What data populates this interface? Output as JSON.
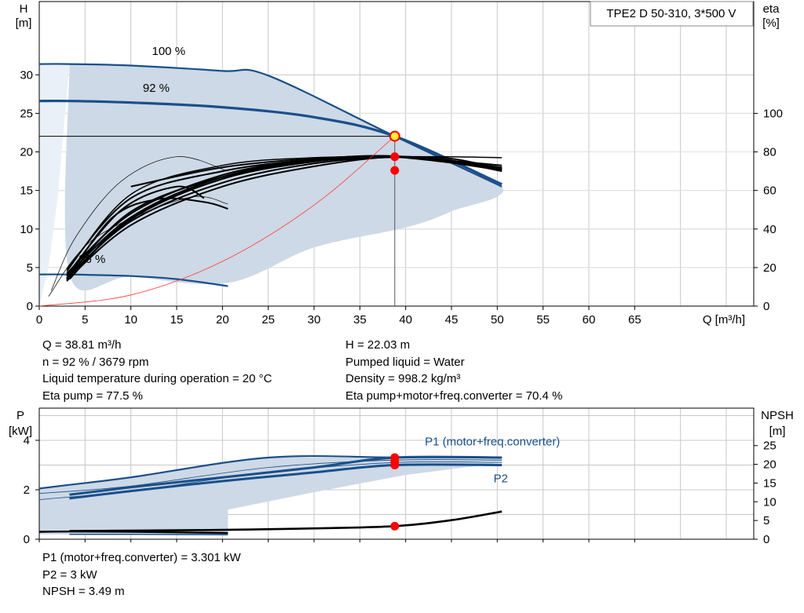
{
  "colors": {
    "curve": "#1a4f8a",
    "fill": "#cdd9e6",
    "fill_light": "#e9f0f8",
    "eta": "#000000",
    "system": "#ff3b3b",
    "dot": "#ff0000",
    "dot_duty": "#ffee33",
    "grid": "#c8c8c8"
  },
  "chart_data": [
    {
      "id": "head",
      "type": "line",
      "title": "TPE2 D 50-310, 3*500 V",
      "xlabel": "Q [m³/h]",
      "ylabel_top": "H",
      "ylabel_unit": "[m]",
      "y2label_top": "eta",
      "y2label_unit": "[%]",
      "xlim": [
        0,
        78
      ],
      "ylim": [
        0,
        39.5
      ],
      "xticks": [
        0,
        5,
        10,
        15,
        20,
        25,
        30,
        35,
        40,
        45,
        50,
        55,
        60,
        65
      ],
      "yticks": [
        0,
        5,
        10,
        15,
        20,
        25,
        30
      ],
      "y2lim": [
        0,
        158
      ],
      "y2ticks": [
        0,
        20,
        40,
        60,
        80,
        100
      ],
      "curve_labels": [
        {
          "text": "100 %",
          "x": 12.3,
          "y": 32.6
        },
        {
          "text": "92 %",
          "x": 11.3,
          "y": 27.8
        },
        {
          "text": "36 %",
          "x": 4.3,
          "y": 5.6
        }
      ],
      "envelope": {
        "upper": [
          [
            3.3,
            31.4
          ],
          [
            10,
            31.2
          ],
          [
            20,
            30.5
          ],
          [
            25,
            29.9
          ],
          [
            38.81,
            22.03
          ],
          [
            50.5,
            15.5
          ]
        ],
        "lower": [
          [
            50.5,
            15.5
          ],
          [
            45,
            12.3
          ],
          [
            40,
            10.2
          ],
          [
            30,
            7.6
          ],
          [
            20.6,
            3.0
          ]
        ],
        "left": [
          [
            20.6,
            3.0
          ],
          [
            10,
            3.8
          ],
          [
            3.3,
            4.1
          ],
          [
            3.3,
            31.4
          ]
        ]
      },
      "envelope_light": [
        [
          0,
          0
        ],
        [
          1,
          5
        ],
        [
          2,
          14
        ],
        [
          3.3,
          31.4
        ],
        [
          0,
          31.4
        ]
      ],
      "series": [
        {
          "name": "100 %",
          "kind": "head",
          "points": [
            [
              0,
              31.4
            ],
            [
              3.3,
              31.4
            ],
            [
              10,
              31.2
            ],
            [
              20,
              30.5
            ],
            [
              25,
              29.9
            ],
            [
              38.81,
              22.03
            ],
            [
              50.5,
              15.5
            ]
          ]
        },
        {
          "name": "92 %",
          "kind": "head",
          "points": [
            [
              0,
              26.6
            ],
            [
              3.3,
              26.6
            ],
            [
              10,
              26.4
            ],
            [
              20,
              25.8
            ],
            [
              30,
              24.5
            ],
            [
              38.81,
              22.03
            ],
            [
              50.5,
              15.8
            ]
          ]
        },
        {
          "name": "36 %",
          "kind": "head",
          "points": [
            [
              0,
              4.1
            ],
            [
              3.3,
              4.1
            ],
            [
              10,
              3.9
            ],
            [
              15,
              3.5
            ],
            [
              20.6,
              2.6
            ]
          ]
        },
        {
          "kind": "eta",
          "points": [
            [
              3,
              13.5
            ],
            [
              10,
              42
            ],
            [
              20,
              62
            ],
            [
              30,
              72.5
            ],
            [
              38.81,
              77.5
            ],
            [
              45,
              75
            ],
            [
              50.5,
              70
            ]
          ]
        },
        {
          "kind": "eta",
          "points": [
            [
              3,
              14.5
            ],
            [
              10,
              44
            ],
            [
              20,
              64
            ],
            [
              30,
              74
            ],
            [
              38.81,
              77.3
            ],
            [
              45,
              75.5
            ],
            [
              50.5,
              71
            ]
          ]
        },
        {
          "kind": "eta",
          "points": [
            [
              3,
              15.5
            ],
            [
              10,
              46
            ],
            [
              20,
              66
            ],
            [
              30,
              75
            ],
            [
              38.81,
              77.8
            ],
            [
              50.5,
              72
            ]
          ]
        },
        {
          "kind": "eta",
          "points": [
            [
              3,
              17
            ],
            [
              10,
              48
            ],
            [
              20,
              68
            ],
            [
              30,
              76
            ],
            [
              38.81,
              77.5
            ],
            [
              50.5,
              73
            ]
          ]
        },
        {
          "kind": "eta",
          "points": [
            [
              3,
              14.5
            ],
            [
              10,
              49
            ],
            [
              20,
              67
            ],
            [
              30,
              75
            ],
            [
              38.81,
              77.7
            ],
            [
              50.5,
              70.5
            ]
          ]
        },
        {
          "kind": "eta",
          "points": [
            [
              3,
              16
            ],
            [
              9,
              50
            ],
            [
              15,
              62
            ],
            [
              18,
              56
            ]
          ]
        },
        {
          "kind": "eta",
          "points": [
            [
              3,
              14
            ],
            [
              8,
              46
            ],
            [
              13,
              55.5
            ],
            [
              18,
              54
            ],
            [
              20.6,
              50.5
            ]
          ]
        },
        {
          "kind": "eta",
          "points": [
            [
              3,
              19
            ],
            [
              10,
              56
            ],
            [
              20,
              70
            ],
            [
              30,
              76
            ],
            [
              38.81,
              77.7
            ],
            [
              50.5,
              71
            ]
          ]
        },
        {
          "kind": "eta_thin",
          "points": [
            [
              1.3,
              8
            ],
            [
              4,
              36
            ],
            [
              9,
              65
            ],
            [
              15,
              77.5
            ],
            [
              20.6,
              70
            ]
          ]
        },
        {
          "kind": "eta_thin",
          "points": [
            [
              1,
              5
            ],
            [
              6,
              35
            ],
            [
              16,
              56
            ],
            [
              20.6,
              53
            ]
          ]
        },
        {
          "kind": "eta_total",
          "points": [
            [
              3,
              13
            ],
            [
              10,
              45
            ],
            [
              20,
              66
            ],
            [
              30,
              75
            ],
            [
              38.81,
              77.3
            ],
            [
              45,
              76.5
            ],
            [
              50.5,
              71
            ]
          ]
        },
        {
          "kind": "eta_total2",
          "points": [
            [
              3.3,
              14
            ],
            [
              10,
              46
            ],
            [
              20,
              67
            ],
            [
              30,
              75.5
            ],
            [
              38.81,
              77.6
            ],
            [
              50.5,
              71.8
            ]
          ]
        },
        {
          "kind": "eta_pump",
          "points": [
            [
              10,
              62
            ],
            [
              20,
              72
            ],
            [
              30,
              76.5
            ],
            [
              38.81,
              77.4
            ],
            [
              50.5,
              71
            ]
          ]
        },
        {
          "kind": "eta_pump_outer",
          "points": [
            [
              3,
              18
            ],
            [
              10,
              58
            ],
            [
              20,
              73
            ],
            [
              30,
              77
            ],
            [
              38.81,
              77.5
            ],
            [
              45,
              77.5
            ],
            [
              50.5,
              77
            ]
          ]
        },
        {
          "kind": "system",
          "points": [
            [
              0,
              0
            ],
            [
              10,
              1.45
            ],
            [
              20,
              5.8
            ],
            [
              30,
              13.1
            ],
            [
              38.81,
              22.03
            ]
          ]
        }
      ],
      "duty": {
        "q": 38.81,
        "h": 22.03,
        "eta_points": [
          77.5,
          70.4
        ]
      }
    },
    {
      "id": "power",
      "type": "line",
      "ylabel_top": "P",
      "ylabel_unit": "[kW]",
      "y2label_top": "NPSH",
      "y2label_unit": "[m]",
      "xlim": [
        0,
        78
      ],
      "ylim": [
        0,
        5.3
      ],
      "yticks": [
        0,
        2,
        4
      ],
      "y2lim": [
        0,
        35
      ],
      "y2ticks": [
        0,
        5,
        10,
        15,
        20,
        25
      ],
      "series_labels": [
        {
          "text": "P1 (motor+freq.converter)",
          "x": 42.1,
          "y": 3.8
        },
        {
          "text": "P2",
          "x": 49.6,
          "y": 2.3
        }
      ],
      "envelope": [
        [
          0,
          2.05
        ],
        [
          25,
          3.3
        ],
        [
          50.5,
          3.3
        ],
        [
          50.5,
          3.1
        ],
        [
          40,
          2.6
        ],
        [
          30,
          1.9
        ],
        [
          20.6,
          1.2
        ],
        [
          20.6,
          0.15
        ],
        [
          10,
          0.18
        ],
        [
          0,
          0.2
        ]
      ],
      "series": [
        {
          "name": "P1 (motor+freq.converter)",
          "kind": "p1_max",
          "points": [
            [
              0,
              2.05
            ],
            [
              3.3,
              2.2
            ],
            [
              10,
              2.5
            ],
            [
              25,
              3.3
            ],
            [
              38.81,
              3.31
            ],
            [
              50.5,
              3.31
            ]
          ]
        },
        {
          "name": "P1 (motor+freq.converter)",
          "kind": "p1_op",
          "points": [
            [
              3.3,
              1.8
            ],
            [
              10,
              2.1
            ],
            [
              20,
              2.5
            ],
            [
              30,
              2.9
            ],
            [
              38.81,
              3.301
            ],
            [
              50.5,
              3.3
            ]
          ]
        },
        {
          "name": "P2",
          "kind": "p2_op",
          "points": [
            [
              3.3,
              1.65
            ],
            [
              10,
              1.95
            ],
            [
              20,
              2.35
            ],
            [
              30,
              2.7
            ],
            [
              38.81,
              3.0
            ],
            [
              50.5,
              3.0
            ]
          ]
        },
        {
          "kind": "p_thin",
          "points": [
            [
              0,
              1.85
            ],
            [
              10,
              2.15
            ],
            [
              25,
              2.9
            ],
            [
              38.81,
              3.2
            ],
            [
              50.5,
              3.2
            ]
          ]
        },
        {
          "kind": "p_thin",
          "points": [
            [
              0,
              1.6
            ],
            [
              10,
              1.95
            ],
            [
              25,
              2.7
            ],
            [
              38.81,
              3.1
            ],
            [
              50.5,
              3.1
            ]
          ]
        },
        {
          "kind": "p1_36",
          "points": [
            [
              0,
              0.3
            ],
            [
              3.3,
              0.31
            ],
            [
              10,
              0.3
            ],
            [
              20.6,
              0.25
            ]
          ]
        },
        {
          "kind": "p2_36",
          "points": [
            [
              3.3,
              0.2
            ],
            [
              10,
              0.2
            ],
            [
              20.6,
              0.18
            ]
          ]
        },
        {
          "kind": "npsh",
          "points": [
            [
              3.3,
              2.2
            ],
            [
              10,
              2.3
            ],
            [
              20,
              2.5
            ],
            [
              30,
              2.9
            ],
            [
              38.81,
              3.49
            ],
            [
              45,
              5.1
            ],
            [
              50.5,
              7.4
            ]
          ]
        }
      ],
      "duty": {
        "q": 38.81,
        "p1": 3.301,
        "p2": 3.0,
        "npsh": 3.49
      }
    }
  ],
  "info_left": [
    "Q = 38.81 m³/h",
    "n = 92 % / 3679 rpm",
    "Liquid temperature during operation = 20 °C",
    "Eta pump = 77.5 %"
  ],
  "info_right": [
    "H = 22.03 m",
    "Pumped liquid = Water",
    "Density = 998.2 kg/m³",
    "Eta pump+motor+freq.converter = 70.4 %"
  ],
  "info_bottom": [
    "P1 (motor+freq.converter) = 3.301 kW",
    "P2 = 3 kW",
    "NPSH = 3.49 m"
  ]
}
